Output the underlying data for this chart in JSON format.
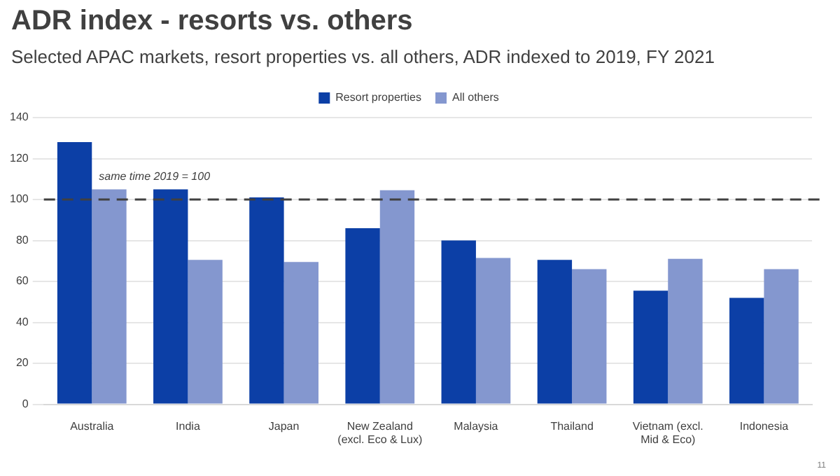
{
  "chart_data": {
    "type": "bar",
    "title": "ADR index - resorts vs. others",
    "subtitle": "Selected APAC markets, resort properties vs. all others, ADR indexed to 2019, FY 2021",
    "categories": [
      "Australia",
      "India",
      "Japan",
      "New Zealand\n(excl. Eco & Lux)",
      "Malaysia",
      "Thailand",
      "Vietnam (excl.\nMid & Eco)",
      "Indonesia"
    ],
    "series": [
      {
        "name": "Resort properties",
        "color": "#0c3fa6",
        "values": [
          128,
          105,
          101,
          86,
          80,
          70.5,
          55.5,
          52
        ]
      },
      {
        "name": "All others",
        "color": "#8497cf",
        "values": [
          105,
          70.5,
          69.5,
          104.5,
          71.5,
          66,
          71,
          66
        ]
      }
    ],
    "ylim": [
      0,
      140
    ],
    "yticks": [
      0,
      20,
      40,
      60,
      80,
      100,
      120,
      140
    ],
    "grid": "y",
    "legend": "top",
    "ref_lines": [
      {
        "axis": "y",
        "value": 100,
        "label": "same time 2019 = 100",
        "color": "#404040",
        "line_style": "dashed"
      }
    ],
    "annotations": [
      "11"
    ]
  }
}
